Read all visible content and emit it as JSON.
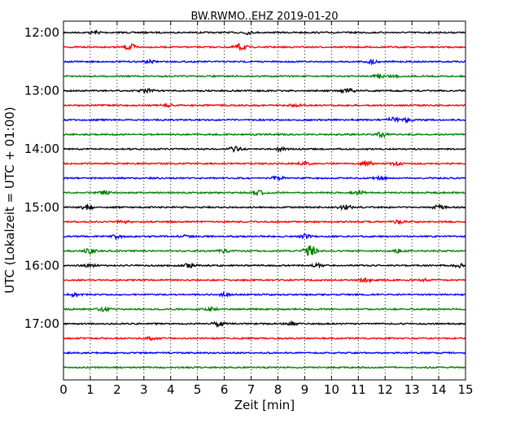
{
  "chart_data": {
    "type": "line",
    "title": "BW.RWMO..EHZ 2019-01-20",
    "xlabel": "Zeit  [min]",
    "ylabel": "UTC (Lokalzeit = UTC + 01:00)",
    "xlim": [
      0,
      15
    ],
    "x_ticks": [
      "0",
      "1",
      "2",
      "3",
      "4",
      "5",
      "6",
      "7",
      "8",
      "9",
      "10",
      "11",
      "12",
      "13",
      "14",
      "15"
    ],
    "y_ticks": [
      "12:00",
      "13:00",
      "14:00",
      "15:00",
      "16:00",
      "17:00"
    ],
    "grid": "vertical dotted lines at each minute",
    "colors": [
      "#000000",
      "#ff0000",
      "#0000ff",
      "#008000"
    ],
    "traces": [
      {
        "start": "12:00",
        "color": "#000000",
        "events": [
          [
            1.2,
            0.4
          ],
          [
            6.8,
            0.5
          ]
        ]
      },
      {
        "start": "12:15",
        "color": "#ff0000",
        "events": [
          [
            2.5,
            0.9
          ],
          [
            6.6,
            1.0
          ]
        ]
      },
      {
        "start": "12:30",
        "color": "#0000ff",
        "events": [
          [
            3.2,
            0.4
          ],
          [
            11.5,
            0.5
          ]
        ]
      },
      {
        "start": "12:45",
        "color": "#008000",
        "events": [
          [
            11.8,
            0.5
          ],
          [
            12.3,
            0.4
          ]
        ]
      },
      {
        "start": "13:00",
        "color": "#000000",
        "events": [
          [
            3.1,
            0.6
          ],
          [
            10.6,
            0.8
          ]
        ]
      },
      {
        "start": "13:15",
        "color": "#ff0000",
        "events": [
          [
            3.9,
            0.5
          ],
          [
            8.6,
            0.4
          ]
        ]
      },
      {
        "start": "13:30",
        "color": "#0000ff",
        "events": [
          [
            12.3,
            0.7
          ],
          [
            12.8,
            0.5
          ]
        ]
      },
      {
        "start": "13:45",
        "color": "#008000",
        "events": [
          [
            11.9,
            0.9
          ]
        ]
      },
      {
        "start": "14:00",
        "color": "#000000",
        "events": [
          [
            6.4,
            0.7
          ],
          [
            8.1,
            0.5
          ]
        ]
      },
      {
        "start": "14:15",
        "color": "#ff0000",
        "events": [
          [
            9.0,
            0.6
          ],
          [
            11.3,
            0.8
          ],
          [
            12.4,
            0.5
          ]
        ]
      },
      {
        "start": "14:30",
        "color": "#0000ff",
        "events": [
          [
            8.0,
            0.6
          ],
          [
            11.8,
            0.5
          ]
        ]
      },
      {
        "start": "14:45",
        "color": "#008000",
        "events": [
          [
            1.5,
            0.6
          ],
          [
            7.3,
            0.6
          ],
          [
            11.0,
            0.5
          ]
        ]
      },
      {
        "start": "15:00",
        "color": "#000000",
        "events": [
          [
            0.9,
            0.7
          ],
          [
            10.5,
            0.7
          ],
          [
            14.0,
            0.6
          ]
        ]
      },
      {
        "start": "15:15",
        "color": "#ff0000",
        "events": [
          [
            2.3,
            0.4
          ],
          [
            12.5,
            0.5
          ]
        ]
      },
      {
        "start": "15:30",
        "color": "#0000ff",
        "events": [
          [
            2.0,
            0.6
          ],
          [
            4.5,
            0.4
          ],
          [
            9.0,
            0.5
          ]
        ]
      },
      {
        "start": "15:45",
        "color": "#008000",
        "events": [
          [
            1.0,
            0.8
          ],
          [
            6.0,
            0.5
          ],
          [
            9.2,
            1.6
          ],
          [
            12.5,
            0.5
          ]
        ]
      },
      {
        "start": "16:00",
        "color": "#000000",
        "events": [
          [
            1.0,
            0.5
          ],
          [
            4.7,
            0.6
          ],
          [
            9.5,
            0.5
          ],
          [
            14.8,
            0.5
          ]
        ]
      },
      {
        "start": "16:15",
        "color": "#ff0000",
        "events": [
          [
            11.3,
            0.6
          ],
          [
            13.5,
            0.4
          ]
        ]
      },
      {
        "start": "16:30",
        "color": "#0000ff",
        "events": [
          [
            0.4,
            0.4
          ],
          [
            6.0,
            0.4
          ]
        ]
      },
      {
        "start": "16:45",
        "color": "#008000",
        "events": [
          [
            1.5,
            0.5
          ],
          [
            5.5,
            0.5
          ]
        ]
      },
      {
        "start": "17:00",
        "color": "#000000",
        "events": [
          [
            5.8,
            0.7
          ],
          [
            8.5,
            0.4
          ]
        ]
      },
      {
        "start": "17:15",
        "color": "#ff0000",
        "events": [
          [
            3.3,
            0.4
          ]
        ]
      },
      {
        "start": "17:30",
        "color": "#0000ff",
        "events": []
      },
      {
        "start": "17:45",
        "color": "#008000",
        "events": []
      }
    ]
  }
}
